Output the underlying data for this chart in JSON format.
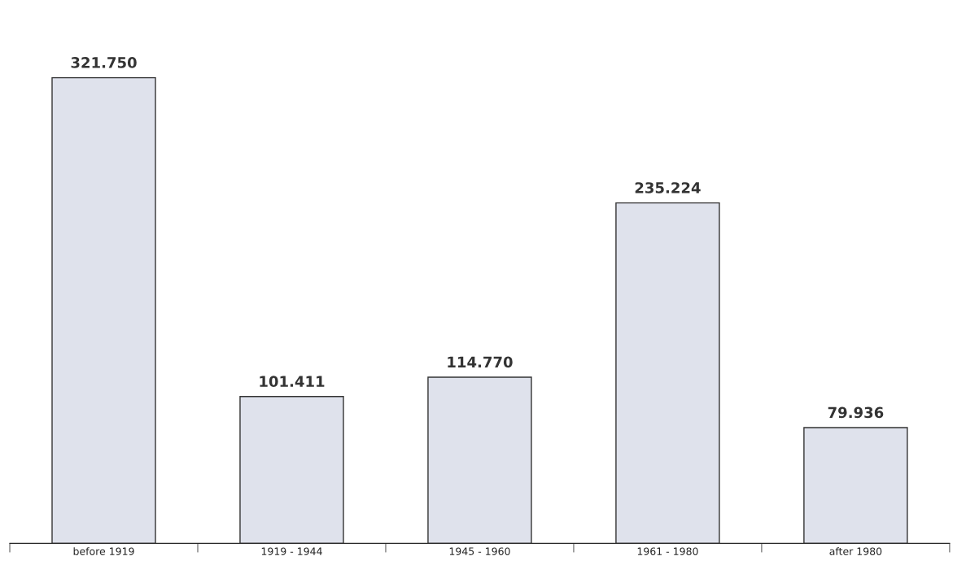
{
  "chart_data": {
    "type": "bar",
    "categories": [
      "before 1919",
      "1919 - 1944",
      "1945 - 1960",
      "1961 - 1980",
      "after 1980"
    ],
    "values": [
      321750,
      101411,
      114770,
      235224,
      79936
    ],
    "value_labels": [
      "321.750",
      "101.411",
      "114.770",
      "235.224",
      "79.936"
    ],
    "color": "#dfe2ec",
    "grid": false,
    "legend": false
  }
}
